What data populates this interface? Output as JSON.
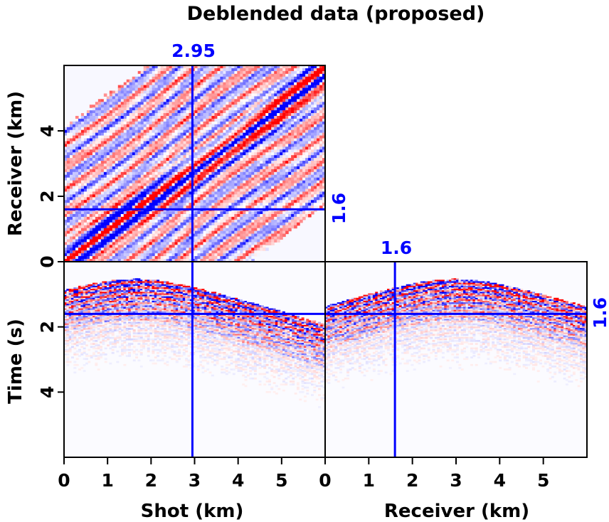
{
  "chart_data": {
    "type": "heatmap",
    "title": "Deblended data (proposed)",
    "description": "3D seismic cube displayed as three orthogonal slices with blue-white-red polarity colormap",
    "colormap": {
      "negative": "#0000ff",
      "zero": "#ffffff",
      "positive": "#ff0000"
    },
    "crosshair_color": "#0000ff",
    "panels": [
      {
        "id": "top",
        "name": "time-slice",
        "xlabel": "",
        "ylabel": "Receiver (km)",
        "xlim": [
          0,
          6
        ],
        "ylim": [
          0,
          6
        ],
        "yticks": [
          0,
          2,
          4
        ],
        "ytick_labels": [
          "0",
          "2",
          "4"
        ],
        "pattern": "diagonal events"
      },
      {
        "id": "front",
        "name": "common-receiver-gather",
        "xlabel": "Shot (km)",
        "ylabel": "Time (s)",
        "xlim": [
          0,
          6
        ],
        "ylim": [
          6,
          0
        ],
        "xticks": [
          0,
          1,
          2,
          3,
          4,
          5
        ],
        "xtick_labels": [
          "0",
          "1",
          "2",
          "3",
          "4",
          "5"
        ],
        "yticks": [
          0,
          2,
          4
        ],
        "ytick_labels": [
          "0",
          "2",
          "4"
        ],
        "apex_x": 1.6
      },
      {
        "id": "side",
        "name": "common-shot-gather",
        "xlabel": "Receiver (km)",
        "ylabel": "",
        "xlim": [
          0,
          6
        ],
        "ylim": [
          6,
          0
        ],
        "xticks": [
          0,
          1,
          2,
          3,
          4,
          5
        ],
        "xtick_labels": [
          "0",
          "1",
          "2",
          "3",
          "4",
          "5"
        ],
        "apex_x": 2.95
      }
    ],
    "crosshairs": {
      "shot_km": 2.95,
      "receiver_km": 1.6,
      "time_s": 1.6
    },
    "crosshair_labels": {
      "shot": "2.95",
      "receiver_top": "1.6",
      "receiver_side": "1.6",
      "time": "1.6"
    }
  }
}
